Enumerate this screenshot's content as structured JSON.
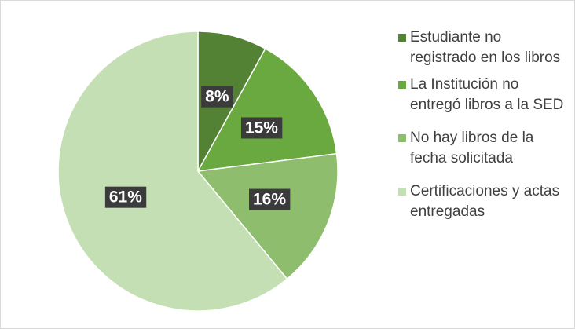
{
  "chart_data": {
    "type": "pie",
    "categories": [
      "Estudiante no registrado en los libros",
      "La Institución no entregó libros a la SED",
      "No hay libros de la fecha solicitada",
      "Certificaciones y actas entregadas"
    ],
    "values": [
      8,
      15,
      16,
      61
    ],
    "value_labels": [
      "8%",
      "15%",
      "16%",
      "61%"
    ],
    "colors": [
      "#548235",
      "#6aa840",
      "#8fbd6e",
      "#c5dfb4"
    ],
    "legend": "right"
  }
}
